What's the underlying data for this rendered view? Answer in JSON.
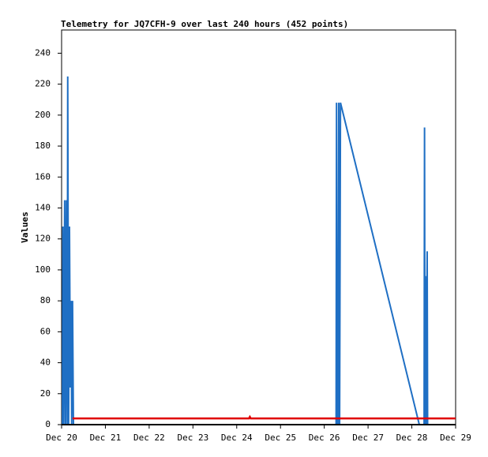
{
  "chart_data": {
    "type": "line",
    "title": "Telemetry for JQ7CFH-9 over last 240 hours (452 points)",
    "y_label": "Values",
    "xlim": [
      20,
      29
    ],
    "xticks": [
      {
        "value": 20,
        "label": "Dec 20"
      },
      {
        "value": 21,
        "label": "Dec 21"
      },
      {
        "value": 22,
        "label": "Dec 22"
      },
      {
        "value": 23,
        "label": "Dec 23"
      },
      {
        "value": 24,
        "label": "Dec 24"
      },
      {
        "value": 25,
        "label": "Dec 25"
      },
      {
        "value": 26,
        "label": "Dec 26"
      },
      {
        "value": 27,
        "label": "Dec 27"
      },
      {
        "value": 28,
        "label": "Dec 28"
      },
      {
        "value": 29,
        "label": "Dec 29"
      }
    ],
    "ylim": [
      0,
      255
    ],
    "yticks": [
      0,
      20,
      40,
      60,
      80,
      100,
      120,
      140,
      160,
      180,
      200,
      220,
      240
    ],
    "series": [
      {
        "color": "#1f6fc4",
        "x": [
          20.02,
          20.03,
          20.05,
          20.07,
          20.09,
          20.11,
          20.13,
          20.14,
          20.16,
          20.18,
          20.2,
          20.22,
          20.23,
          20.25,
          20.27,
          23.0,
          26.27,
          26.28,
          26.3,
          26.31,
          26.32,
          26.33,
          26.35,
          26.37,
          28.17,
          28.28,
          28.29,
          28.3,
          28.31,
          28.33,
          28.35,
          28.36
        ],
        "values": [
          0,
          128,
          0,
          145,
          0,
          145,
          0,
          225,
          0,
          128,
          24,
          80,
          0,
          80,
          0,
          null,
          0,
          208,
          0,
          48,
          0,
          208,
          0,
          208,
          0,
          0,
          192,
          0,
          96,
          0,
          112,
          0
        ]
      },
      {
        "color": "#e00000",
        "x": [
          20.25,
          24.28,
          24.3,
          24.32,
          29.0
        ],
        "values": [
          4,
          4,
          5,
          4,
          4
        ]
      }
    ]
  }
}
